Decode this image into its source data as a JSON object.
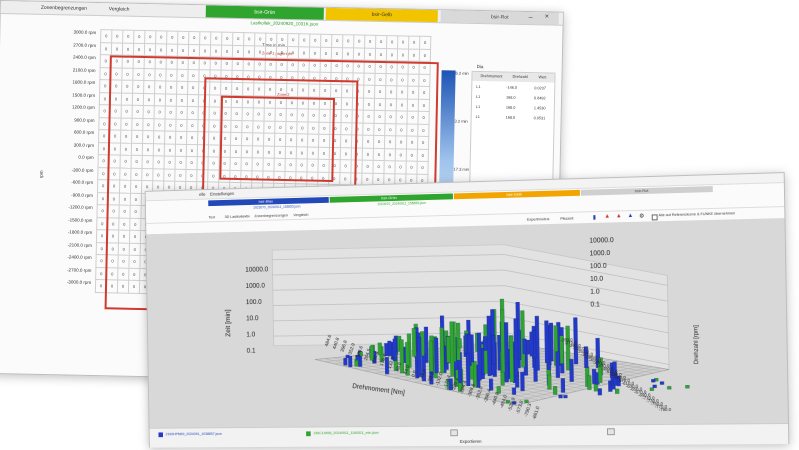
{
  "back_window": {
    "menu": [
      "Zonenbegrenzungen",
      "Vergleich"
    ],
    "tabs": [
      {
        "label": "bsir-Grün",
        "color": "#2fa52f"
      },
      {
        "label": "bsir-Gelb",
        "color": "#f2c400"
      },
      {
        "label": "bsir-Rot",
        "color": "#d9d9d9"
      }
    ],
    "subtitle": "Lastkollek_20240920_1031K.json",
    "grid_title": "Time in min",
    "zone_label_1": "Zone 1 pageright",
    "zone_label_2": "Zone 2",
    "y_axis_title": "rpm",
    "row_labels": [
      "3000.0 rpm",
      "2700.0 rpm",
      "2400.0 rpm",
      "2100.0 rpm",
      "1800.0 rpm",
      "1500.0 rpm",
      "1200.0 rpm",
      "900.0 rpm",
      "600.0 rpm",
      "300.0 rpm",
      "0.0 rpm",
      "-300.0 rpm",
      "-600.0 rpm",
      "-900.0 rpm",
      "-1200.0 rpm",
      "-1500.0 rpm",
      "-1800.0 rpm",
      "-2100.0 rpm",
      "-2400.0 rpm",
      "-2700.0 rpm",
      "-3000.0 rpm"
    ],
    "colorbar": {
      "top": "6.2 min",
      "mid": "3.2 min",
      "bottom": "17.3 min"
    },
    "side_table": {
      "title": "Dia",
      "headers": [
        "Drehmoment",
        "Drehzahl",
        "Wert"
      ],
      "rows": [
        [
          "L1",
          "-146.0",
          "0.0237"
        ],
        [
          "L1",
          "168.0",
          "0.8492"
        ],
        [
          "L1",
          "168.0",
          "1.4530"
        ],
        [
          "L1",
          "168.0",
          "0.0531"
        ]
      ]
    }
  },
  "front_window": {
    "menu": [
      "elle",
      "Einstellungen"
    ],
    "tabs": [
      {
        "label": "bsir-Blau",
        "sub": "2023070_20240911_155855.json",
        "color": "#2348b8"
      },
      {
        "label": "bsir-Grün",
        "sub": "2023070_20240911_155855.json",
        "color": "#2fa52f"
      },
      {
        "label": "bsir-Gelb",
        "sub": "",
        "color": "#f2a500"
      },
      {
        "label": "bsir-Rot",
        "sub": "",
        "color": "#cfcfcf"
      }
    ],
    "subtabs": [
      "Text",
      "3D Lastkollektiv",
      "Zonenbegrenzungen",
      "Vergleich"
    ],
    "toolbar_right": [
      "Expertmodus",
      "Pikszeit"
    ],
    "checkbox_label": "Alle auf Referenzkurve & FUNKE übernehmen",
    "plot": {
      "z_axis_title": "Zeit [min]",
      "z_ticks": [
        "10000.0",
        "1000.0",
        "100.0",
        "10.0",
        "1.0",
        "0.1"
      ],
      "z_ticks_right": [
        "10000.0",
        "1000.0",
        "100.0",
        "10.0",
        "1.0",
        "0.1"
      ],
      "x_axis_title": "Drehmoment [Nm]",
      "x_ticks": [
        "-661.0",
        "-790.3",
        "-573.8",
        "-528.9",
        "-484.0",
        "-440.8",
        "-396.4",
        "-352.0",
        "-308.6",
        "-264.4",
        "-220.4",
        "-176.4",
        "-132.0",
        "-88.0",
        "-44.0",
        "0.0",
        "44.0",
        "88.0",
        "132.3",
        "176.4",
        "220.4",
        "264.5",
        "308.6",
        "352.9",
        "396.8",
        "440.8",
        "484.6"
      ],
      "y_axis_title": "Drehzahl [rpm]",
      "y_ticks": [
        "-250.0",
        "-270.0",
        "-290.0",
        "-330.0",
        "-350.0",
        "-370.0",
        "-390.0",
        "-410.0",
        "-450.0",
        "-470.0",
        "-490.0",
        "-510.0",
        "-530.0",
        "-550.0",
        "-570.0",
        "-610.0",
        "-630.0",
        "-650.0",
        "-670.0",
        "-690.0",
        "-710.0",
        "-730.0",
        "-750.0",
        "-770.0",
        "-790.0"
      ],
      "series_colors": [
        "#2339c7",
        "#2fa52f"
      ]
    },
    "status": {
      "left_file": "2169HPM69_2024091_1038857.json",
      "right_file": "236C19458_20240911_1160511_min.json",
      "center_button": "Exportieren"
    }
  }
}
